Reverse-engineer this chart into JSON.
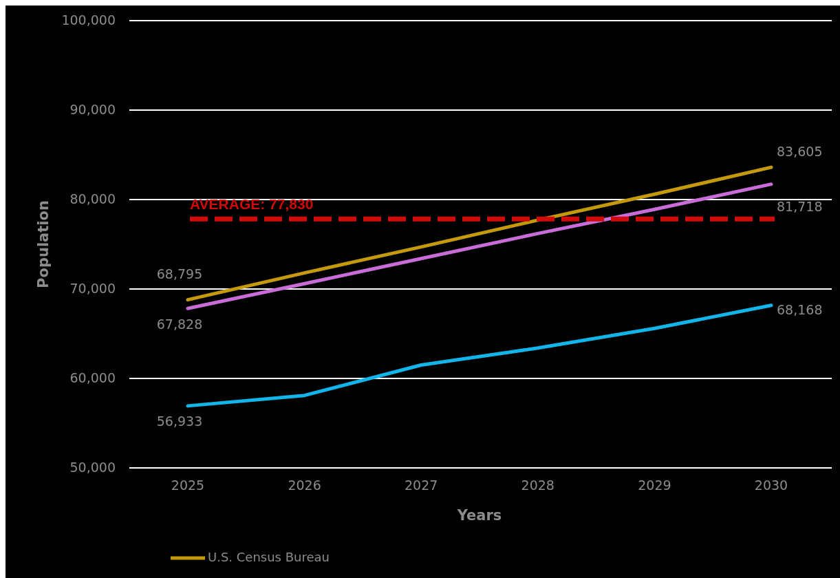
{
  "chart_data": {
    "type": "line",
    "xlabel": "Years",
    "ylabel": "Population",
    "categories": [
      "2025",
      "2026",
      "2027",
      "2028",
      "2029",
      "2030"
    ],
    "series": [
      {
        "name": "U.S. Census Bureau",
        "color": "#c49a0a",
        "values": [
          68795,
          71800,
          74700,
          77700,
          80600,
          83605
        ],
        "value_labels": [
          "68,795",
          null,
          null,
          null,
          null,
          "83,605"
        ]
      },
      {
        "color": "#12b5ea",
        "values": [
          56933,
          58100,
          61500,
          63400,
          65600,
          68168
        ],
        "value_labels": [
          "56,933",
          null,
          null,
          null,
          null,
          "68,168"
        ]
      },
      {
        "color": "#c86dd7",
        "values": [
          67828,
          70600,
          73400,
          76200,
          78900,
          81718
        ],
        "value_labels": [
          "67,828",
          null,
          null,
          null,
          null,
          "81,718"
        ]
      }
    ],
    "ylim": [
      50000,
      100000
    ],
    "yticks": [
      {
        "value": 50000,
        "label": "50,000"
      },
      {
        "value": 60000,
        "label": "60,000"
      },
      {
        "value": 70000,
        "label": "70,000"
      },
      {
        "value": 80000,
        "label": "80,000"
      },
      {
        "value": 90000,
        "label": "90,000"
      },
      {
        "value": 100000,
        "label": "100,000"
      }
    ],
    "grid": "y",
    "legend": "bottom",
    "line_style": "solid",
    "marker": "none",
    "ref_lines": [
      {
        "axis": "y",
        "value": 77830,
        "label": "AVERAGE: 77,830",
        "color": "#d10a0a",
        "line_style": "dashed"
      }
    ]
  }
}
